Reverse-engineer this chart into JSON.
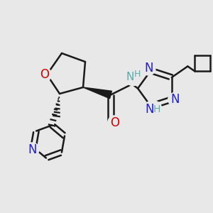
{
  "bg_color": "#e8e8e8",
  "bond_color": "#1a1a1a",
  "bond_width": 1.8,
  "N_color": "#2020cc",
  "O_color": "#cc0000",
  "NH_color": "#5aacac",
  "label_fontsize": 11,
  "figsize": [
    3.0,
    3.0
  ],
  "dpi": 100,
  "xlim": [
    0,
    10
  ],
  "ylim": [
    0,
    10
  ]
}
